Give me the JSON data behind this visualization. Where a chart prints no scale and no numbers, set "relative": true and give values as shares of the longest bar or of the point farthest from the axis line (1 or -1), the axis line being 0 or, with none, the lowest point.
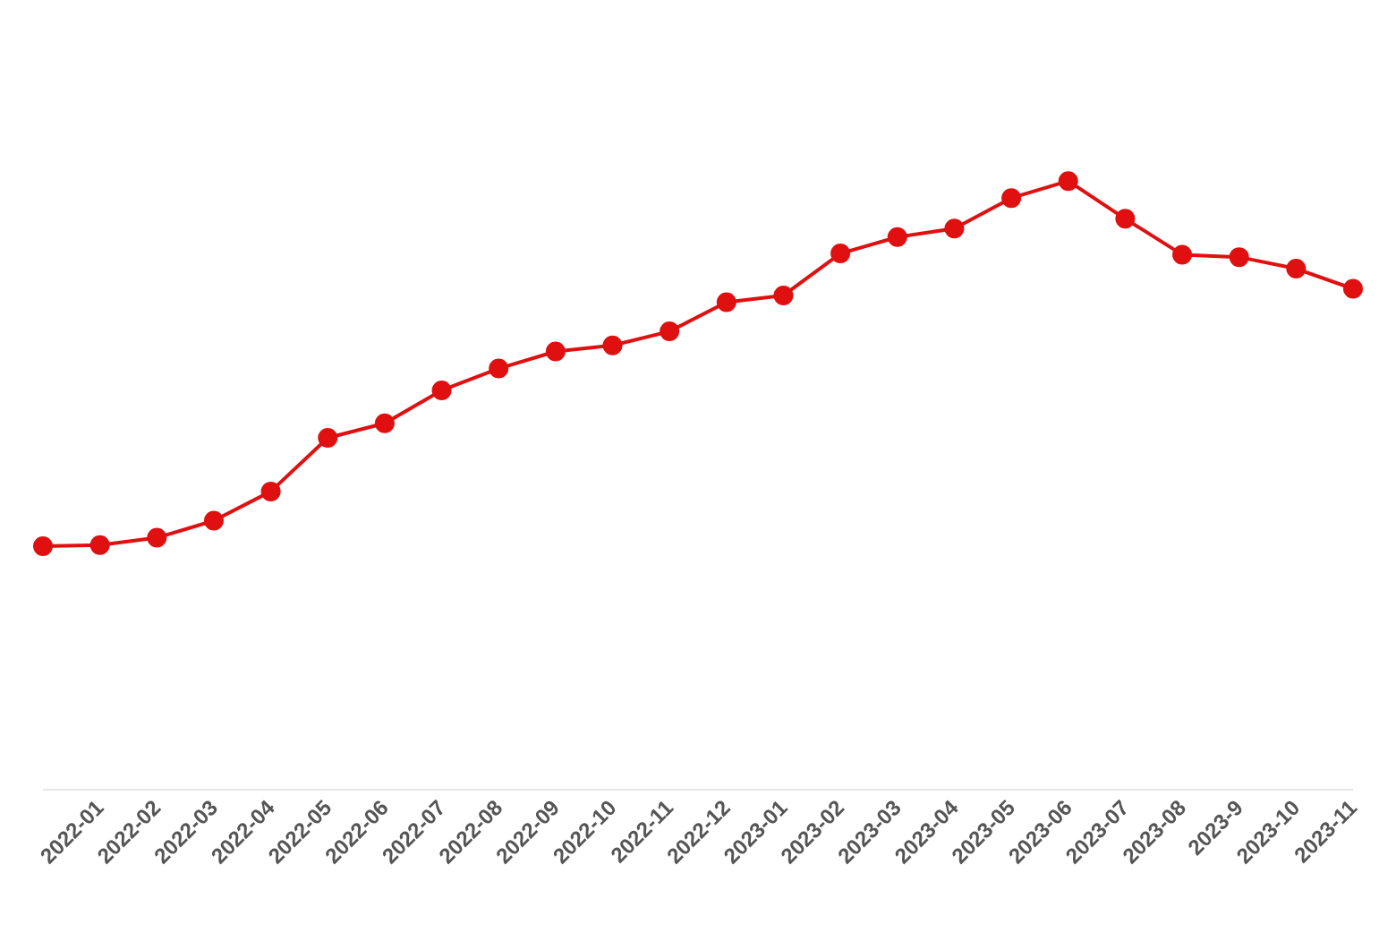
{
  "chart_data": {
    "type": "line",
    "relative": true,
    "marker": "circle",
    "grid": false,
    "legend": false,
    "categories": [
      null,
      "2022-01",
      "2022-02",
      "2022-03",
      "2022-04",
      "2022-05",
      "2022-06",
      "2022-07",
      "2022-08",
      "2022-09",
      "2022-10",
      "2022-11",
      "2022-12",
      "2023-01",
      "2023-02",
      "2023-03",
      "2023-04",
      "2023-05",
      "2023-06",
      "2023-07",
      "2023-08",
      "2023-9",
      "2023-10",
      "2023-11"
    ],
    "series": [
      {
        "color": "#e01010",
        "values": [
          0.4,
          0.402,
          0.414,
          0.442,
          0.49,
          0.578,
          0.602,
          0.656,
          0.692,
          0.72,
          0.73,
          0.753,
          0.801,
          0.812,
          0.881,
          0.908,
          0.922,
          0.972,
          1,
          0.938,
          0.879,
          0.875,
          0.856,
          0.823
        ]
      }
    ]
  }
}
